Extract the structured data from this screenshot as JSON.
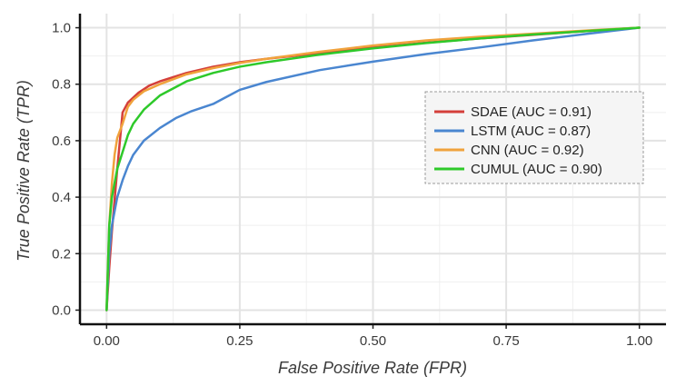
{
  "chart_data": {
    "type": "line",
    "title": "",
    "xlabel": "False Positive Rate (FPR)",
    "ylabel": "True Positive Rate (TPR)",
    "xlim": [
      0,
      1
    ],
    "ylim": [
      0,
      1
    ],
    "x_ticks": [
      0,
      0.25,
      0.5,
      0.75,
      1.0
    ],
    "y_ticks": [
      0,
      0.2,
      0.4,
      0.6,
      0.8,
      1.0
    ],
    "x_tick_labels": [
      "0.00",
      "0.25",
      "0.50",
      "0.75",
      "1.00"
    ],
    "y_tick_labels": [
      "0.0",
      "0.2",
      "0.4",
      "0.6",
      "0.8",
      "1.0"
    ],
    "grid": true,
    "legend_position": "center-right",
    "series": [
      {
        "name": "SDAE (AUC = 0.91)",
        "color": "#d43f3a",
        "points": [
          [
            0,
            0
          ],
          [
            0.005,
            0.15
          ],
          [
            0.01,
            0.28
          ],
          [
            0.02,
            0.5
          ],
          [
            0.03,
            0.7
          ],
          [
            0.04,
            0.735
          ],
          [
            0.06,
            0.77
          ],
          [
            0.08,
            0.795
          ],
          [
            0.1,
            0.81
          ],
          [
            0.15,
            0.84
          ],
          [
            0.2,
            0.862
          ],
          [
            0.25,
            0.878
          ],
          [
            0.3,
            0.89
          ],
          [
            0.4,
            0.91
          ],
          [
            0.5,
            0.93
          ],
          [
            0.6,
            0.947
          ],
          [
            0.7,
            0.962
          ],
          [
            0.8,
            0.975
          ],
          [
            0.9,
            0.988
          ],
          [
            1.0,
            1.0
          ]
        ]
      },
      {
        "name": "LSTM (AUC = 0.87)",
        "color": "#4a86d0",
        "points": [
          [
            0,
            0
          ],
          [
            0.005,
            0.2
          ],
          [
            0.01,
            0.3
          ],
          [
            0.02,
            0.4
          ],
          [
            0.03,
            0.46
          ],
          [
            0.04,
            0.51
          ],
          [
            0.05,
            0.55
          ],
          [
            0.07,
            0.6
          ],
          [
            0.1,
            0.645
          ],
          [
            0.13,
            0.68
          ],
          [
            0.16,
            0.705
          ],
          [
            0.2,
            0.73
          ],
          [
            0.22,
            0.75
          ],
          [
            0.25,
            0.78
          ],
          [
            0.3,
            0.808
          ],
          [
            0.4,
            0.85
          ],
          [
            0.5,
            0.88
          ],
          [
            0.6,
            0.907
          ],
          [
            0.7,
            0.93
          ],
          [
            0.8,
            0.955
          ],
          [
            0.9,
            0.978
          ],
          [
            1.0,
            1.0
          ]
        ]
      },
      {
        "name": "CNN (AUC = 0.92)",
        "color": "#f0a23c",
        "points": [
          [
            0,
            0
          ],
          [
            0.005,
            0.3
          ],
          [
            0.01,
            0.45
          ],
          [
            0.015,
            0.55
          ],
          [
            0.02,
            0.61
          ],
          [
            0.03,
            0.66
          ],
          [
            0.04,
            0.72
          ],
          [
            0.05,
            0.745
          ],
          [
            0.07,
            0.775
          ],
          [
            0.1,
            0.8
          ],
          [
            0.15,
            0.835
          ],
          [
            0.2,
            0.857
          ],
          [
            0.25,
            0.875
          ],
          [
            0.3,
            0.89
          ],
          [
            0.4,
            0.915
          ],
          [
            0.5,
            0.937
          ],
          [
            0.6,
            0.955
          ],
          [
            0.7,
            0.968
          ],
          [
            0.8,
            0.979
          ],
          [
            0.9,
            0.99
          ],
          [
            1.0,
            1.0
          ]
        ]
      },
      {
        "name": "CUMUL (AUC = 0.90)",
        "color": "#2ec92a",
        "points": [
          [
            0,
            0
          ],
          [
            0.005,
            0.3
          ],
          [
            0.01,
            0.4
          ],
          [
            0.02,
            0.5
          ],
          [
            0.03,
            0.56
          ],
          [
            0.04,
            0.62
          ],
          [
            0.05,
            0.66
          ],
          [
            0.07,
            0.71
          ],
          [
            0.1,
            0.76
          ],
          [
            0.15,
            0.81
          ],
          [
            0.2,
            0.84
          ],
          [
            0.25,
            0.862
          ],
          [
            0.3,
            0.878
          ],
          [
            0.4,
            0.905
          ],
          [
            0.5,
            0.927
          ],
          [
            0.6,
            0.946
          ],
          [
            0.7,
            0.962
          ],
          [
            0.8,
            0.976
          ],
          [
            0.9,
            0.988
          ],
          [
            1.0,
            1.0
          ]
        ]
      }
    ]
  }
}
